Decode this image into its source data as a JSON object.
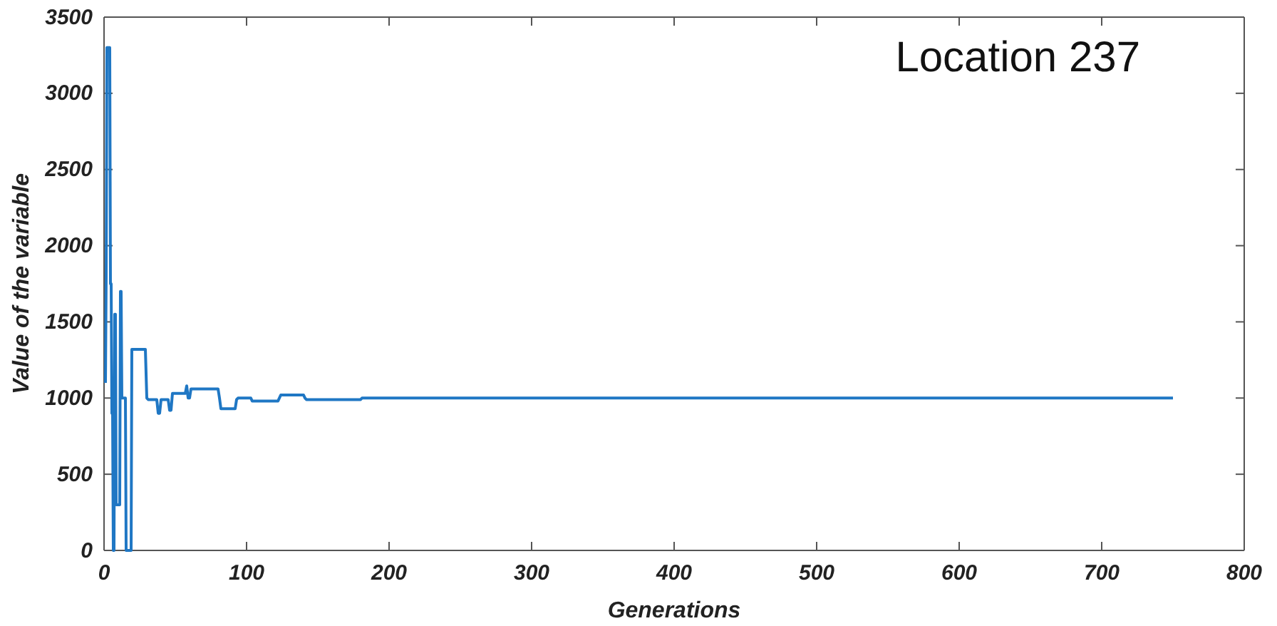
{
  "chart_data": {
    "type": "line",
    "xlabel": "Generations",
    "ylabel": "Value of the variable",
    "annotations": [
      "Location 237"
    ],
    "xlim": [
      0,
      800
    ],
    "ylim": [
      0,
      3500
    ],
    "xticks": [
      0,
      100,
      200,
      300,
      400,
      500,
      600,
      700,
      800
    ],
    "yticks": [
      0,
      500,
      1000,
      1500,
      2000,
      2500,
      3000,
      3500
    ],
    "grid": false,
    "series": [
      {
        "color": "#1f77c4",
        "x": [
          1,
          1.5,
          2,
          4,
          4.5,
          5,
          5.5,
          6,
          6.5,
          7,
          7.5,
          8,
          8.5,
          9,
          11,
          11.5,
          12,
          12.5,
          13,
          15,
          15.5,
          16,
          19,
          19.5,
          21,
          29,
          30,
          31,
          37,
          38,
          39,
          40,
          41,
          45,
          46,
          47,
          48,
          57,
          58,
          59,
          60,
          61,
          62,
          80,
          81,
          82,
          92,
          93,
          94,
          103,
          104,
          105,
          122,
          123,
          124,
          140,
          141,
          142,
          180,
          181,
          750
        ],
        "values": [
          1100,
          1800,
          3300,
          3300,
          1750,
          1750,
          900,
          900,
          0,
          0,
          1550,
          1550,
          300,
          300,
          300,
          1700,
          1700,
          1000,
          1000,
          1000,
          0,
          0,
          0,
          1320,
          1320,
          1320,
          1000,
          990,
          990,
          900,
          900,
          990,
          990,
          990,
          920,
          920,
          1030,
          1030,
          1080,
          1000,
          1000,
          1060,
          1060,
          1060,
          1000,
          930,
          930,
          990,
          1000,
          1000,
          980,
          980,
          980,
          1000,
          1020,
          1020,
          1000,
          990,
          990,
          1000,
          1000
        ]
      }
    ]
  }
}
